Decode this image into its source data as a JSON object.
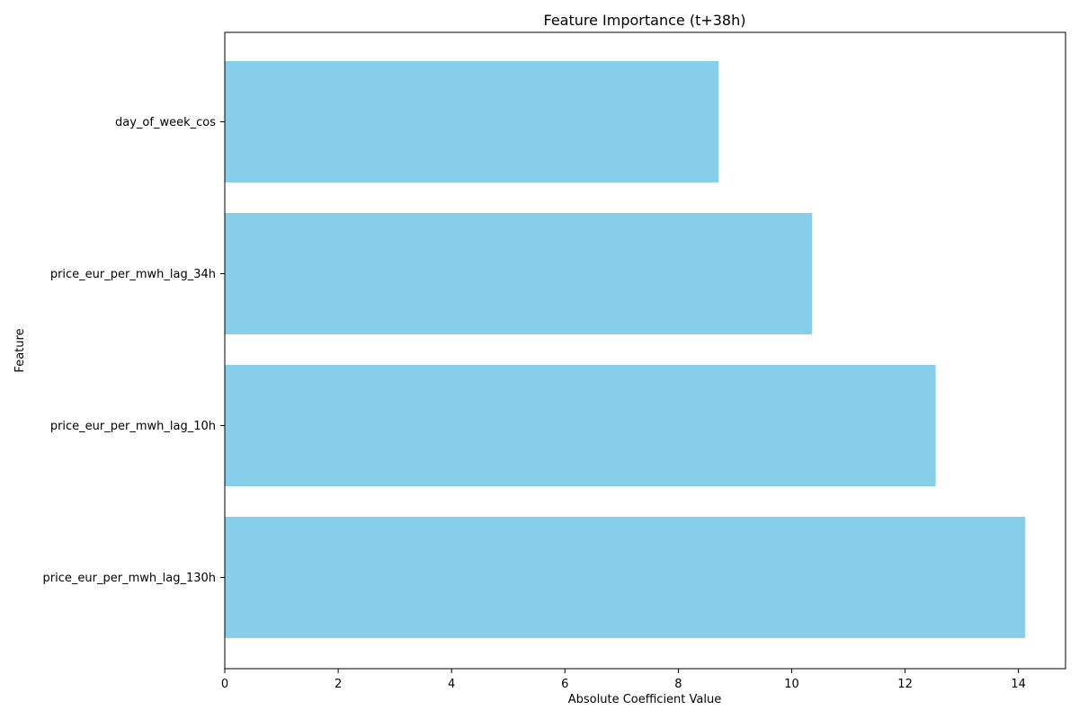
{
  "chart_data": {
    "type": "bar",
    "orientation": "horizontal",
    "title": "Feature Importance (t+38h)",
    "xlabel": "Absolute Coefficient Value",
    "ylabel": "Feature",
    "categories": [
      "price_eur_per_mwh_lag_130h",
      "price_eur_per_mwh_lag_10h",
      "price_eur_per_mwh_lag_34h",
      "day_of_week_cos"
    ],
    "values": [
      14.12,
      12.54,
      10.36,
      8.71
    ],
    "xlim": [
      0,
      14.83
    ],
    "xticks": [
      "0",
      "2",
      "4",
      "6",
      "8",
      "10",
      "12",
      "14"
    ],
    "bar_color": "#87ceeb",
    "grid": false
  }
}
